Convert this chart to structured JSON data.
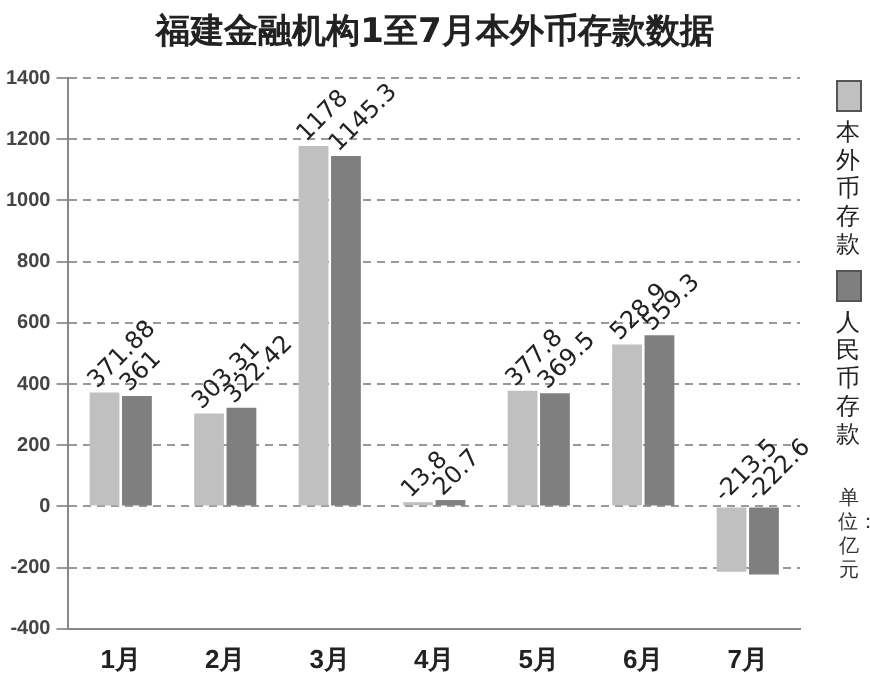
{
  "chart_data": {
    "type": "bar",
    "title": "福建金融机构1至7月本外币存款数据",
    "categories": [
      "1月",
      "2月",
      "3月",
      "4月",
      "5月",
      "6月",
      "7月"
    ],
    "series": [
      {
        "name": "本外币存款",
        "color": "#c0c0c0",
        "values": [
          371.88,
          303.31,
          1178,
          13.8,
          377.8,
          528.9,
          -213.5
        ]
      },
      {
        "name": "人民币存款",
        "color": "#7f7f7f",
        "values": [
          361,
          322.42,
          1145.3,
          20.7,
          369.5,
          559.3,
          -222.6
        ]
      }
    ],
    "ylim": [
      -400,
      1400
    ],
    "yticks": [
      -400,
      -200,
      0,
      200,
      400,
      600,
      800,
      1000,
      1200,
      1400
    ],
    "grid": "y",
    "legend": "right",
    "data_labels": true,
    "annotations": [
      "单位：亿元"
    ]
  }
}
